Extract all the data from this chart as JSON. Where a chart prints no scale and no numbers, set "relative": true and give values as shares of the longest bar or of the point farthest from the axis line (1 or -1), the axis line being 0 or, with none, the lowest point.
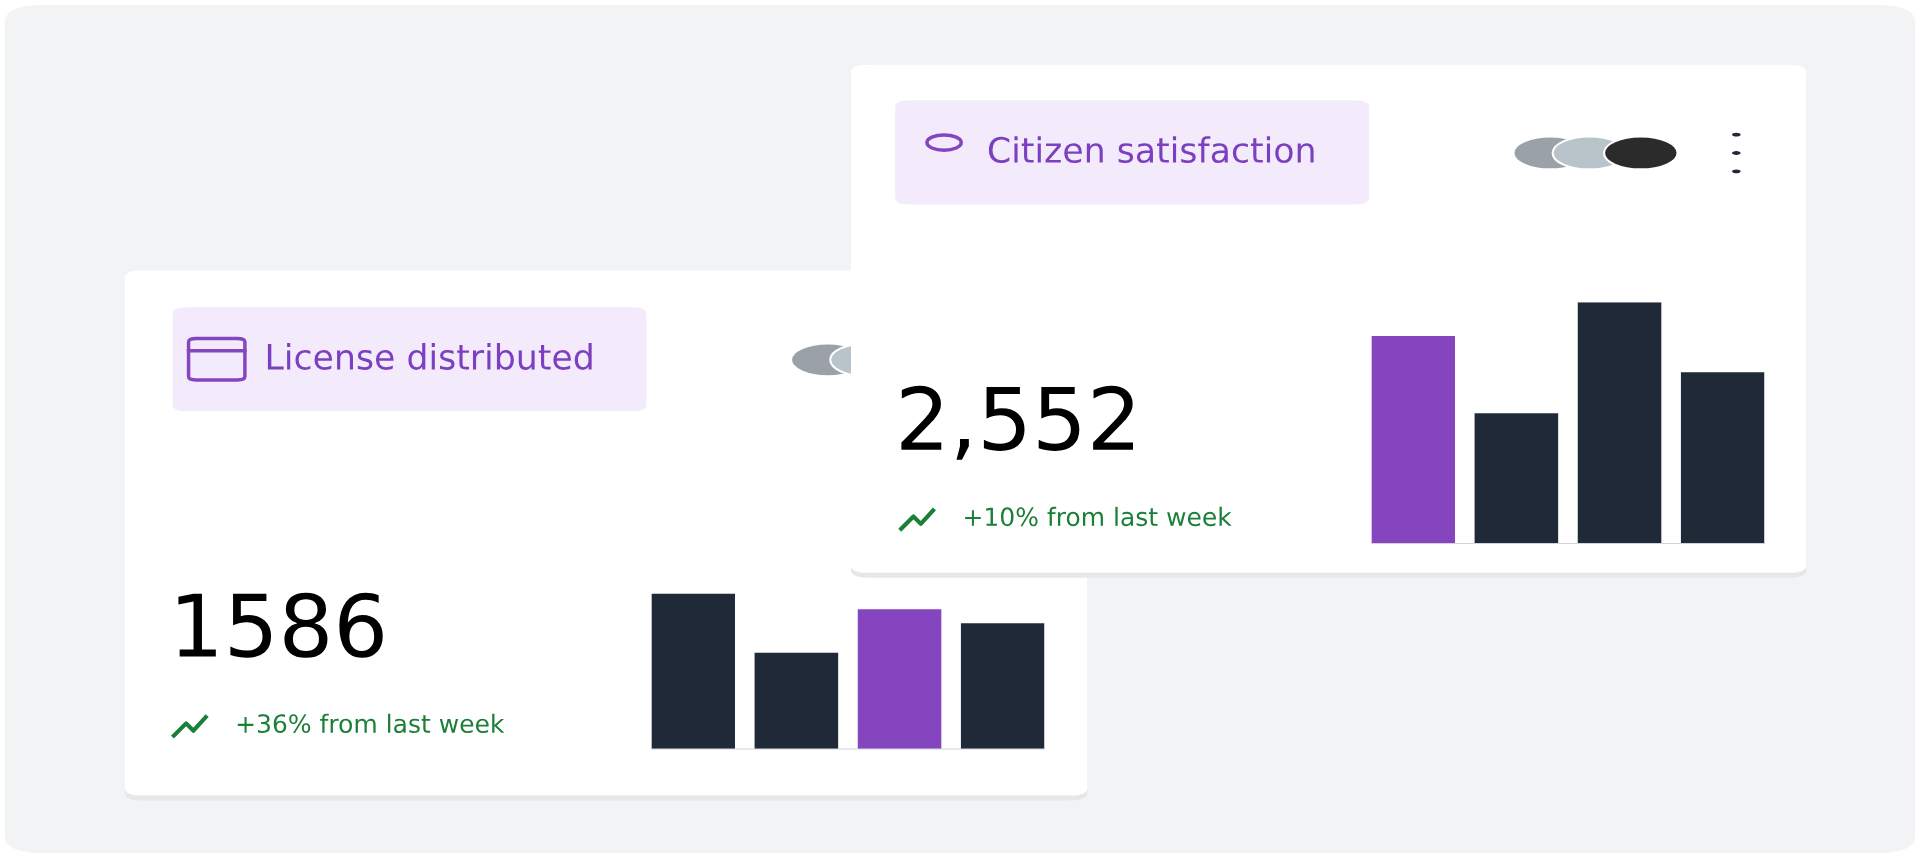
{
  "chart_data": [
    {
      "type": "bar",
      "title": "License distributed",
      "categories": [
        null,
        null,
        null,
        null
      ],
      "values": [
        1,
        0.62,
        0.9,
        0.81
      ],
      "colors": [
        "#1f2937",
        "#1f2937",
        "#8445bf",
        "#1f2937"
      ],
      "relative": true,
      "grid": false,
      "legend": false,
      "annotations": [
        "1586",
        "+36% from last week"
      ]
    },
    {
      "type": "bar",
      "title": "Citizen satisfaction",
      "categories": [
        null,
        null,
        null,
        null
      ],
      "values": [
        0.86,
        0.54,
        1,
        0.71
      ],
      "colors": [
        "#8445bf",
        "#1f2937",
        "#1f2937",
        "#1f2937"
      ],
      "relative": true,
      "grid": false,
      "legend": false,
      "annotations": [
        "2,552",
        "+10% from last week"
      ]
    }
  ]
}
